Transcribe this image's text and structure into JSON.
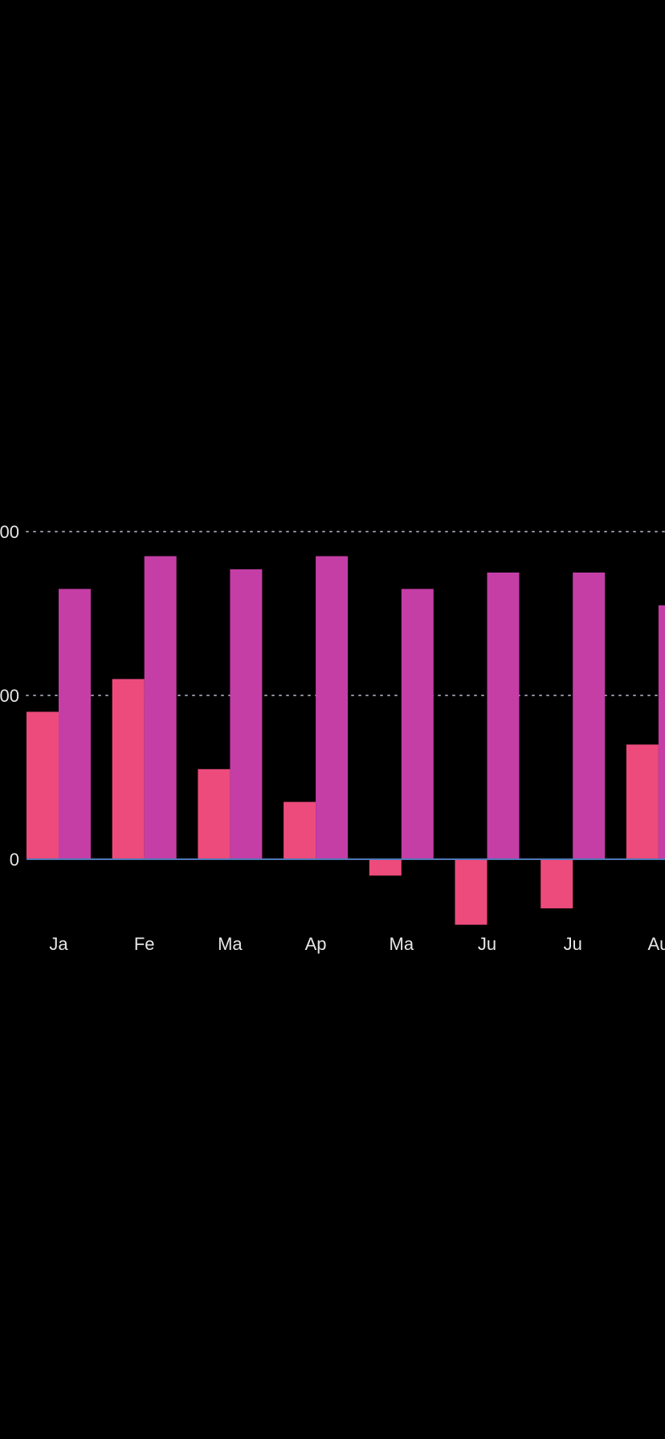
{
  "colors": {
    "background": "#000000",
    "series_a": "#ec4b7c",
    "series_b": "#c43ea6",
    "gridline": "#8f8fa0",
    "zero_line": "#4f79b8",
    "tick_text": "#e6e6e6"
  },
  "chart_data": {
    "type": "bar",
    "title": "",
    "xlabel": "",
    "ylabel": "",
    "grid": true,
    "legend": "none",
    "categories": [
      "Ja",
      "Fe",
      "Ma",
      "Ap",
      "Ma",
      "Ju",
      "Ju",
      "Au"
    ],
    "y_ticks": [
      {
        "value": 0,
        "label": "0"
      },
      {
        "value": 100,
        "label": "00"
      },
      {
        "value": 200,
        "label": "00"
      }
    ],
    "ylim": [
      -40,
      200
    ],
    "series": [
      {
        "values": [
          90,
          110,
          55,
          35,
          -10,
          -40,
          -30,
          70
        ]
      },
      {
        "values": [
          165,
          185,
          177,
          185,
          165,
          175,
          175,
          155
        ]
      }
    ]
  }
}
